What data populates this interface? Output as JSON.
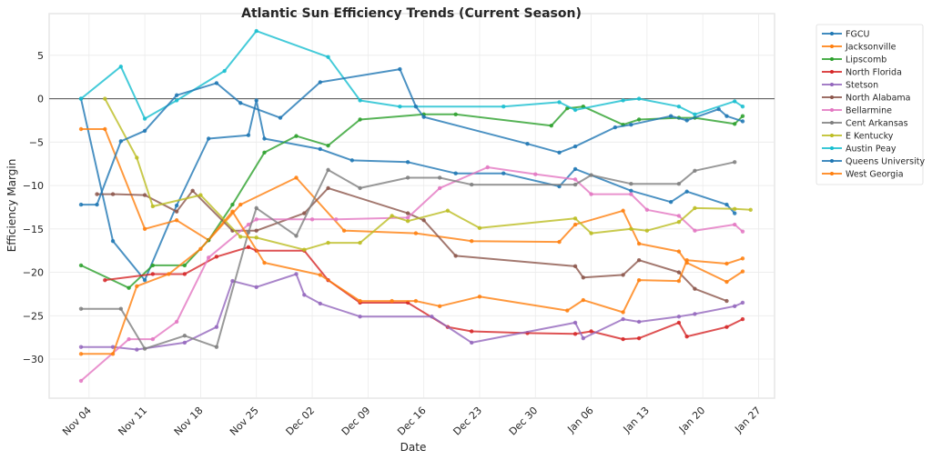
{
  "chart_data": {
    "type": "line",
    "title": "Atlantic Sun Efficiency Trends (Current Season)",
    "xlabel": "Date",
    "ylabel": "Efficiency Margin",
    "x_ticks": [
      "Nov 04",
      "Nov 11",
      "Nov 18",
      "Nov 25",
      "Dec 02",
      "Dec 09",
      "Dec 16",
      "Dec 23",
      "Dec 30",
      "Jan 06",
      "Jan 13",
      "Jan 20",
      "Jan 27"
    ],
    "x_tick_dates": [
      "2024-11-04",
      "2024-11-11",
      "2024-11-18",
      "2024-11-25",
      "2024-12-02",
      "2024-12-09",
      "2024-12-16",
      "2024-12-23",
      "2024-12-30",
      "2025-01-06",
      "2025-01-13",
      "2025-01-20",
      "2025-01-27"
    ],
    "xlim": [
      "2024-10-30",
      "2025-01-29"
    ],
    "y_ticks": [
      5,
      0,
      -5,
      -10,
      -15,
      -20,
      -25,
      -30
    ],
    "y_tick_labels": [
      "5",
      "0",
      "−5",
      "−10",
      "−15",
      "−20",
      "−25",
      "−30"
    ],
    "ylim": [
      -34.5,
      9.8
    ],
    "grid": true,
    "zero_line": true,
    "legend_position": "outside-right",
    "series": [
      {
        "name": "FGCU",
        "color": "#1f77b4",
        "points": [
          [
            "2024-11-03",
            0.0
          ],
          [
            "2024-11-07",
            -16.4
          ],
          [
            "2024-11-11",
            -20.9
          ],
          [
            "2024-11-15",
            -12.3
          ],
          [
            "2024-11-19",
            -4.6
          ],
          [
            "2024-11-24",
            -4.2
          ],
          [
            "2024-11-25",
            -0.2
          ],
          [
            "2024-11-26",
            -4.6
          ],
          [
            "2024-12-03",
            -5.8
          ],
          [
            "2024-12-07",
            -7.1
          ],
          [
            "2024-12-14",
            -7.3
          ],
          [
            "2024-12-20",
            -8.6
          ],
          [
            "2024-12-26",
            -8.6
          ],
          [
            "2025-01-02",
            -10.1
          ],
          [
            "2025-01-04",
            -8.1
          ],
          [
            "2025-01-11",
            -10.6
          ],
          [
            "2025-01-16",
            -11.9
          ],
          [
            "2025-01-18",
            -10.7
          ],
          [
            "2025-01-23",
            -12.2
          ],
          [
            "2025-01-24",
            -13.2
          ]
        ]
      },
      {
        "name": "Jacksonville",
        "color": "#ff7f0e",
        "points": [
          [
            "2024-11-03",
            -3.5
          ],
          [
            "2024-11-06",
            -3.5
          ],
          [
            "2024-11-11",
            -15.0
          ],
          [
            "2024-11-15",
            -14.0
          ],
          [
            "2024-11-19",
            -16.3
          ],
          [
            "2024-11-23",
            -12.2
          ],
          [
            "2024-11-30",
            -9.1
          ],
          [
            "2024-12-06",
            -15.2
          ],
          [
            "2024-12-15",
            -15.5
          ],
          [
            "2024-12-22",
            -16.4
          ],
          [
            "2025-01-02",
            -16.5
          ],
          [
            "2025-01-04",
            -14.5
          ],
          [
            "2025-01-10",
            -12.9
          ],
          [
            "2025-01-12",
            -16.7
          ],
          [
            "2025-01-17",
            -17.6
          ],
          [
            "2025-01-18",
            -18.9
          ],
          [
            "2025-01-23",
            -21.1
          ],
          [
            "2025-01-25",
            -19.9
          ]
        ]
      },
      {
        "name": "Lipscomb",
        "color": "#2ca02c",
        "points": [
          [
            "2024-11-03",
            -19.2
          ],
          [
            "2024-11-09",
            -21.8
          ],
          [
            "2024-11-12",
            -19.2
          ],
          [
            "2024-11-16",
            -19.2
          ],
          [
            "2024-11-19",
            -16.3
          ],
          [
            "2024-11-22",
            -12.2
          ],
          [
            "2024-11-26",
            -6.2
          ],
          [
            "2024-11-30",
            -4.3
          ],
          [
            "2024-12-04",
            -5.4
          ],
          [
            "2024-12-08",
            -2.4
          ],
          [
            "2024-12-16",
            -1.8
          ],
          [
            "2024-12-20",
            -1.8
          ],
          [
            "2025-01-01",
            -3.1
          ],
          [
            "2025-01-03",
            -1.1
          ],
          [
            "2025-01-05",
            -0.9
          ],
          [
            "2025-01-10",
            -3.0
          ],
          [
            "2025-01-12",
            -2.4
          ],
          [
            "2025-01-17",
            -2.2
          ],
          [
            "2025-01-19",
            -2.2
          ],
          [
            "2025-01-24",
            -2.9
          ],
          [
            "2025-01-25",
            -2.0
          ]
        ]
      },
      {
        "name": "North Florida",
        "color": "#d62728",
        "points": [
          [
            "2024-11-06",
            -20.9
          ],
          [
            "2024-11-12",
            -20.2
          ],
          [
            "2024-11-16",
            -20.2
          ],
          [
            "2024-11-20",
            -18.2
          ],
          [
            "2024-11-24",
            -17.1
          ],
          [
            "2024-11-25",
            -17.5
          ],
          [
            "2024-12-01",
            -17.5
          ],
          [
            "2024-12-04",
            -20.9
          ],
          [
            "2024-12-08",
            -23.5
          ],
          [
            "2024-12-14",
            -23.5
          ],
          [
            "2024-12-19",
            -26.3
          ],
          [
            "2024-12-22",
            -26.8
          ],
          [
            "2024-12-29",
            -27.0
          ],
          [
            "2025-01-04",
            -27.1
          ],
          [
            "2025-01-06",
            -26.8
          ],
          [
            "2025-01-10",
            -27.7
          ],
          [
            "2025-01-12",
            -27.6
          ],
          [
            "2025-01-17",
            -25.8
          ],
          [
            "2025-01-18",
            -27.4
          ],
          [
            "2025-01-23",
            -26.3
          ],
          [
            "2025-01-25",
            -25.4
          ]
        ]
      },
      {
        "name": "Stetson",
        "color": "#9467bd",
        "points": [
          [
            "2024-11-03",
            -28.6
          ],
          [
            "2024-11-07",
            -28.6
          ],
          [
            "2024-11-10",
            -28.9
          ],
          [
            "2024-11-16",
            -28.1
          ],
          [
            "2024-11-20",
            -26.3
          ],
          [
            "2024-11-22",
            -21.0
          ],
          [
            "2024-11-25",
            -21.7
          ],
          [
            "2024-11-30",
            -20.2
          ],
          [
            "2024-12-01",
            -22.6
          ],
          [
            "2024-12-03",
            -23.6
          ],
          [
            "2024-12-08",
            -25.1
          ],
          [
            "2024-12-17",
            -25.1
          ],
          [
            "2024-12-22",
            -28.1
          ],
          [
            "2025-01-04",
            -25.8
          ],
          [
            "2025-01-05",
            -27.6
          ],
          [
            "2025-01-10",
            -25.4
          ],
          [
            "2025-01-12",
            -25.7
          ],
          [
            "2025-01-17",
            -25.1
          ],
          [
            "2025-01-19",
            -24.8
          ],
          [
            "2025-01-24",
            -23.9
          ],
          [
            "2025-01-25",
            -23.5
          ]
        ]
      },
      {
        "name": "North Alabama",
        "color": "#8c564b",
        "points": [
          [
            "2024-11-05",
            -11.0
          ],
          [
            "2024-11-07",
            -11.0
          ],
          [
            "2024-11-11",
            -11.1
          ],
          [
            "2024-11-15",
            -13.0
          ],
          [
            "2024-11-17",
            -10.6
          ],
          [
            "2024-11-22",
            -15.2
          ],
          [
            "2024-11-25",
            -15.2
          ],
          [
            "2024-12-01",
            -13.2
          ],
          [
            "2024-12-04",
            -10.3
          ],
          [
            "2024-12-14",
            -13.2
          ],
          [
            "2024-12-16",
            -14.0
          ],
          [
            "2024-12-20",
            -18.1
          ],
          [
            "2025-01-04",
            -19.3
          ],
          [
            "2025-01-05",
            -20.6
          ],
          [
            "2025-01-10",
            -20.3
          ],
          [
            "2025-01-12",
            -18.6
          ],
          [
            "2025-01-17",
            -20.0
          ],
          [
            "2025-01-19",
            -21.9
          ],
          [
            "2025-01-23",
            -23.3
          ]
        ]
      },
      {
        "name": "Bellarmine",
        "color": "#e377c2",
        "points": [
          [
            "2024-11-03",
            -32.5
          ],
          [
            "2024-11-09",
            -27.7
          ],
          [
            "2024-11-12",
            -27.7
          ],
          [
            "2024-11-15",
            -25.7
          ],
          [
            "2024-11-19",
            -18.3
          ],
          [
            "2024-11-24",
            -14.5
          ],
          [
            "2024-11-25",
            -13.9
          ],
          [
            "2024-12-02",
            -13.9
          ],
          [
            "2024-12-05",
            -13.9
          ],
          [
            "2024-12-14",
            -13.7
          ],
          [
            "2024-12-18",
            -10.3
          ],
          [
            "2024-12-24",
            -7.9
          ],
          [
            "2024-12-30",
            -8.7
          ],
          [
            "2025-01-04",
            -9.3
          ],
          [
            "2025-01-06",
            -11.0
          ],
          [
            "2025-01-11",
            -11.0
          ],
          [
            "2025-01-13",
            -12.8
          ],
          [
            "2025-01-17",
            -13.5
          ],
          [
            "2025-01-19",
            -15.2
          ],
          [
            "2025-01-24",
            -14.5
          ],
          [
            "2025-01-25",
            -15.3
          ]
        ]
      },
      {
        "name": "Cent Arkansas",
        "color": "#7f7f7f",
        "points": [
          [
            "2024-11-03",
            -24.2
          ],
          [
            "2024-11-08",
            -24.2
          ],
          [
            "2024-11-11",
            -28.8
          ],
          [
            "2024-11-16",
            -27.3
          ],
          [
            "2024-11-20",
            -28.6
          ],
          [
            "2024-11-24",
            -15.4
          ],
          [
            "2024-11-25",
            -12.6
          ],
          [
            "2024-11-30",
            -15.8
          ],
          [
            "2024-12-04",
            -8.2
          ],
          [
            "2024-12-08",
            -10.3
          ],
          [
            "2024-12-14",
            -9.1
          ],
          [
            "2024-12-18",
            -9.1
          ],
          [
            "2024-12-22",
            -9.9
          ],
          [
            "2025-01-04",
            -9.9
          ],
          [
            "2025-01-06",
            -8.8
          ],
          [
            "2025-01-11",
            -9.8
          ],
          [
            "2025-01-17",
            -9.8
          ],
          [
            "2025-01-19",
            -8.3
          ],
          [
            "2025-01-24",
            -7.3
          ]
        ]
      },
      {
        "name": "E Kentucky",
        "color": "#bcbd22",
        "points": [
          [
            "2024-11-06",
            0.0
          ],
          [
            "2024-11-10",
            -6.8
          ],
          [
            "2024-11-12",
            -12.4
          ],
          [
            "2024-11-18",
            -11.1
          ],
          [
            "2024-11-23",
            -15.9
          ],
          [
            "2024-11-25",
            -16.0
          ],
          [
            "2024-12-01",
            -17.4
          ],
          [
            "2024-12-04",
            -16.6
          ],
          [
            "2024-12-08",
            -16.6
          ],
          [
            "2024-12-12",
            -13.5
          ],
          [
            "2024-12-14",
            -14.1
          ],
          [
            "2024-12-19",
            -12.9
          ],
          [
            "2024-12-23",
            -14.9
          ],
          [
            "2025-01-04",
            -13.8
          ],
          [
            "2025-01-06",
            -15.5
          ],
          [
            "2025-01-11",
            -15.0
          ],
          [
            "2025-01-13",
            -15.2
          ],
          [
            "2025-01-17",
            -14.2
          ],
          [
            "2025-01-19",
            -12.6
          ],
          [
            "2025-01-24",
            -12.7
          ],
          [
            "2025-01-26",
            -12.8
          ]
        ]
      },
      {
        "name": "Austin Peay",
        "color": "#17becf",
        "points": [
          [
            "2024-11-03",
            0.0
          ],
          [
            "2024-11-08",
            3.7
          ],
          [
            "2024-11-11",
            -2.3
          ],
          [
            "2024-11-15",
            -0.2
          ],
          [
            "2024-11-21",
            3.2
          ],
          [
            "2024-11-25",
            7.8
          ],
          [
            "2024-12-04",
            4.8
          ],
          [
            "2024-12-08",
            -0.2
          ],
          [
            "2024-12-13",
            -0.9
          ],
          [
            "2024-12-26",
            -0.9
          ],
          [
            "2025-01-02",
            -0.4
          ],
          [
            "2025-01-04",
            -1.3
          ],
          [
            "2025-01-10",
            -0.2
          ],
          [
            "2025-01-12",
            0.0
          ],
          [
            "2025-01-17",
            -0.9
          ],
          [
            "2025-01-19",
            -1.8
          ],
          [
            "2025-01-24",
            -0.3
          ],
          [
            "2025-01-25",
            -0.9
          ]
        ]
      },
      {
        "name": "Queens University",
        "color": "#1f77b4",
        "points": [
          [
            "2024-11-03",
            -12.2
          ],
          [
            "2024-11-05",
            -12.2
          ],
          [
            "2024-11-08",
            -4.9
          ],
          [
            "2024-11-11",
            -3.7
          ],
          [
            "2024-11-15",
            0.4
          ],
          [
            "2024-11-20",
            1.8
          ],
          [
            "2024-11-23",
            -0.5
          ],
          [
            "2024-11-28",
            -2.2
          ],
          [
            "2024-12-03",
            1.9
          ],
          [
            "2024-12-13",
            3.4
          ],
          [
            "2024-12-15",
            -0.9
          ],
          [
            "2024-12-16",
            -2.1
          ],
          [
            "2024-12-29",
            -5.2
          ],
          [
            "2025-01-02",
            -6.2
          ],
          [
            "2025-01-04",
            -5.5
          ],
          [
            "2025-01-09",
            -3.3
          ],
          [
            "2025-01-11",
            -3.0
          ],
          [
            "2025-01-16",
            -2.0
          ],
          [
            "2025-01-18",
            -2.5
          ],
          [
            "2025-01-22",
            -1.2
          ],
          [
            "2025-01-23",
            -2.0
          ],
          [
            "2025-01-25",
            -2.6
          ]
        ]
      },
      {
        "name": "West Georgia",
        "color": "#ff7f0e",
        "points": [
          [
            "2024-11-03",
            -29.4
          ],
          [
            "2024-11-07",
            -29.4
          ],
          [
            "2024-11-10",
            -21.6
          ],
          [
            "2024-11-14",
            -20.2
          ],
          [
            "2024-11-18",
            -17.3
          ],
          [
            "2024-11-22",
            -13.0
          ],
          [
            "2024-11-26",
            -18.9
          ],
          [
            "2024-12-03",
            -20.3
          ],
          [
            "2024-12-08",
            -23.3
          ],
          [
            "2024-12-12",
            -23.3
          ],
          [
            "2024-12-15",
            -23.3
          ],
          [
            "2024-12-18",
            -23.9
          ],
          [
            "2024-12-23",
            -22.8
          ],
          [
            "2025-01-03",
            -24.4
          ],
          [
            "2025-01-05",
            -23.2
          ],
          [
            "2025-01-10",
            -24.6
          ],
          [
            "2025-01-12",
            -20.9
          ],
          [
            "2025-01-17",
            -21.0
          ],
          [
            "2025-01-18",
            -18.6
          ],
          [
            "2025-01-23",
            -19.0
          ],
          [
            "2025-01-25",
            -18.4
          ]
        ]
      }
    ]
  }
}
